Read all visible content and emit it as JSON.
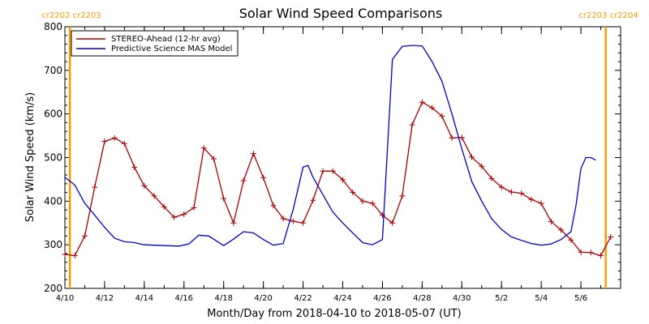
{
  "colors": {
    "stereo": "#aa0000",
    "model": "#0000cc",
    "marker": "#ff9900",
    "axis": "#000000"
  },
  "chart_data": {
    "type": "line",
    "title": "Solar Wind Speed Comparisons",
    "xlabel": "Month/Day from 2018-04-10 to 2018-05-07 (UT)",
    "ylabel": "Solar Wind Speed (km/s)",
    "xlim": [
      "2018-04-10",
      "2018-05-07"
    ],
    "ylim": [
      200,
      800
    ],
    "x_ticks": [
      {
        "date": "2018-04-10",
        "label": "4/10"
      },
      {
        "date": "2018-04-12",
        "label": "4/12"
      },
      {
        "date": "2018-04-14",
        "label": "4/14"
      },
      {
        "date": "2018-04-16",
        "label": "4/16"
      },
      {
        "date": "2018-04-18",
        "label": "4/18"
      },
      {
        "date": "2018-04-20",
        "label": "4/20"
      },
      {
        "date": "2018-04-22",
        "label": "4/22"
      },
      {
        "date": "2018-04-24",
        "label": "4/24"
      },
      {
        "date": "2018-04-26",
        "label": "4/26"
      },
      {
        "date": "2018-04-28",
        "label": "4/28"
      },
      {
        "date": "2018-04-30",
        "label": "4/30"
      },
      {
        "date": "2018-05-02",
        "label": "5/2"
      },
      {
        "date": "2018-05-04",
        "label": "5/4"
      },
      {
        "date": "2018-05-06",
        "label": "5/6"
      }
    ],
    "y_ticks": [
      {
        "value": 200,
        "label": "200"
      },
      {
        "value": 300,
        "label": "300"
      },
      {
        "value": 400,
        "label": "400"
      },
      {
        "value": 500,
        "label": "500"
      },
      {
        "value": 600,
        "label": "600"
      },
      {
        "value": 700,
        "label": "700"
      },
      {
        "value": 800,
        "label": "800"
      }
    ],
    "legend_position": "top-left",
    "series": [
      {
        "name": "STEREO-Ahead (12-hr avg)",
        "style": "line-with-plus-markers",
        "points": [
          [
            "2018-04-10 00:00",
            278
          ],
          [
            "2018-04-10 12:00",
            275
          ],
          [
            "2018-04-11 00:00",
            320
          ],
          [
            "2018-04-11 12:00",
            432
          ],
          [
            "2018-04-12 00:00",
            537
          ],
          [
            "2018-04-12 12:00",
            545
          ],
          [
            "2018-04-13 00:00",
            532
          ],
          [
            "2018-04-13 12:00",
            478
          ],
          [
            "2018-04-14 00:00",
            435
          ],
          [
            "2018-04-14 12:00",
            412
          ],
          [
            "2018-04-15 00:00",
            387
          ],
          [
            "2018-04-15 12:00",
            363
          ],
          [
            "2018-04-16 00:00",
            370
          ],
          [
            "2018-04-16 12:00",
            385
          ],
          [
            "2018-04-17 00:00",
            522
          ],
          [
            "2018-04-17 12:00",
            497
          ],
          [
            "2018-04-18 00:00",
            406
          ],
          [
            "2018-04-18 12:00",
            350
          ],
          [
            "2018-04-19 00:00",
            447
          ],
          [
            "2018-04-19 12:00",
            509
          ],
          [
            "2018-04-20 00:00",
            454
          ],
          [
            "2018-04-20 12:00",
            390
          ],
          [
            "2018-04-21 00:00",
            360
          ],
          [
            "2018-04-21 12:00",
            354
          ],
          [
            "2018-04-22 00:00",
            350
          ],
          [
            "2018-04-22 12:00",
            402
          ],
          [
            "2018-04-23 00:00",
            469
          ],
          [
            "2018-04-23 12:00",
            469
          ],
          [
            "2018-04-24 00:00",
            449
          ],
          [
            "2018-04-24 12:00",
            420
          ],
          [
            "2018-04-25 00:00",
            400
          ],
          [
            "2018-04-25 12:00",
            395
          ],
          [
            "2018-04-26 00:00",
            368
          ],
          [
            "2018-04-26 12:00",
            350
          ],
          [
            "2018-04-27 00:00",
            412
          ],
          [
            "2018-04-27 12:00",
            575
          ],
          [
            "2018-04-28 00:00",
            627
          ],
          [
            "2018-04-28 12:00",
            614
          ],
          [
            "2018-04-29 00:00",
            595
          ],
          [
            "2018-04-29 12:00",
            545
          ],
          [
            "2018-04-30 00:00",
            546
          ],
          [
            "2018-04-30 12:00",
            501
          ],
          [
            "2018-05-01 00:00",
            480
          ],
          [
            "2018-05-01 12:00",
            452
          ],
          [
            "2018-05-02 00:00",
            432
          ],
          [
            "2018-05-02 12:00",
            421
          ],
          [
            "2018-05-03 00:00",
            418
          ],
          [
            "2018-05-03 12:00",
            404
          ],
          [
            "2018-05-04 00:00",
            395
          ],
          [
            "2018-05-04 12:00",
            353
          ],
          [
            "2018-05-05 00:00",
            334
          ],
          [
            "2018-05-05 12:00",
            311
          ],
          [
            "2018-05-06 00:00",
            283
          ],
          [
            "2018-05-06 12:00",
            282
          ],
          [
            "2018-05-07 00:00",
            275
          ],
          [
            "2018-05-07 12:00",
            318
          ]
        ]
      },
      {
        "name": "Predictive Science MAS Model",
        "style": "line",
        "points": [
          [
            "2018-04-10 00:00",
            455
          ],
          [
            "2018-04-10 12:00",
            437
          ],
          [
            "2018-04-11 00:00",
            395
          ],
          [
            "2018-04-11 12:00",
            368
          ],
          [
            "2018-04-12 00:00",
            340
          ],
          [
            "2018-04-12 12:00",
            315
          ],
          [
            "2018-04-13 00:00",
            307
          ],
          [
            "2018-04-13 12:00",
            305
          ],
          [
            "2018-04-14 00:00",
            300
          ],
          [
            "2018-04-15 00:00",
            298
          ],
          [
            "2018-04-15 18:00",
            297
          ],
          [
            "2018-04-16 06:00",
            302
          ],
          [
            "2018-04-16 18:00",
            322
          ],
          [
            "2018-04-17 06:00",
            320
          ],
          [
            "2018-04-18 00:00",
            298
          ],
          [
            "2018-04-18 12:00",
            313
          ],
          [
            "2018-04-19 00:00",
            330
          ],
          [
            "2018-04-19 12:00",
            327
          ],
          [
            "2018-04-20 00:00",
            312
          ],
          [
            "2018-04-20 12:00",
            299
          ],
          [
            "2018-04-21 00:00",
            303
          ],
          [
            "2018-04-21 12:00",
            380
          ],
          [
            "2018-04-22 00:00",
            478
          ],
          [
            "2018-04-22 06:00",
            482
          ],
          [
            "2018-04-22 12:00",
            455
          ],
          [
            "2018-04-23 00:00",
            415
          ],
          [
            "2018-04-23 12:00",
            375
          ],
          [
            "2018-04-24 00:00",
            350
          ],
          [
            "2018-04-24 12:00",
            327
          ],
          [
            "2018-04-25 00:00",
            305
          ],
          [
            "2018-04-25 12:00",
            300
          ],
          [
            "2018-04-26 00:00",
            312
          ],
          [
            "2018-04-26 12:00",
            725
          ],
          [
            "2018-04-27 00:00",
            755
          ],
          [
            "2018-04-27 12:00",
            757
          ],
          [
            "2018-04-28 00:00",
            756
          ],
          [
            "2018-04-28 12:00",
            720
          ],
          [
            "2018-04-29 00:00",
            675
          ],
          [
            "2018-04-29 12:00",
            600
          ],
          [
            "2018-04-30 00:00",
            520
          ],
          [
            "2018-04-30 12:00",
            445
          ],
          [
            "2018-05-01 00:00",
            400
          ],
          [
            "2018-05-01 12:00",
            360
          ],
          [
            "2018-05-02 00:00",
            335
          ],
          [
            "2018-05-02 12:00",
            318
          ],
          [
            "2018-05-03 00:00",
            310
          ],
          [
            "2018-05-03 12:00",
            303
          ],
          [
            "2018-05-04 00:00",
            299
          ],
          [
            "2018-05-04 12:00",
            302
          ],
          [
            "2018-05-05 00:00",
            312
          ],
          [
            "2018-05-05 12:00",
            330
          ],
          [
            "2018-05-05 18:00",
            390
          ],
          [
            "2018-05-06 00:00",
            475
          ],
          [
            "2018-05-06 06:00",
            500
          ],
          [
            "2018-05-06 12:00",
            500
          ],
          [
            "2018-05-06 18:00",
            494
          ]
        ]
      }
    ],
    "markers": [
      {
        "date": "2018-04-10 06:00",
        "label": "cr2202 cr2203"
      },
      {
        "date": "2018-05-07 06:00",
        "label": "cr2203 cr2204"
      }
    ]
  }
}
